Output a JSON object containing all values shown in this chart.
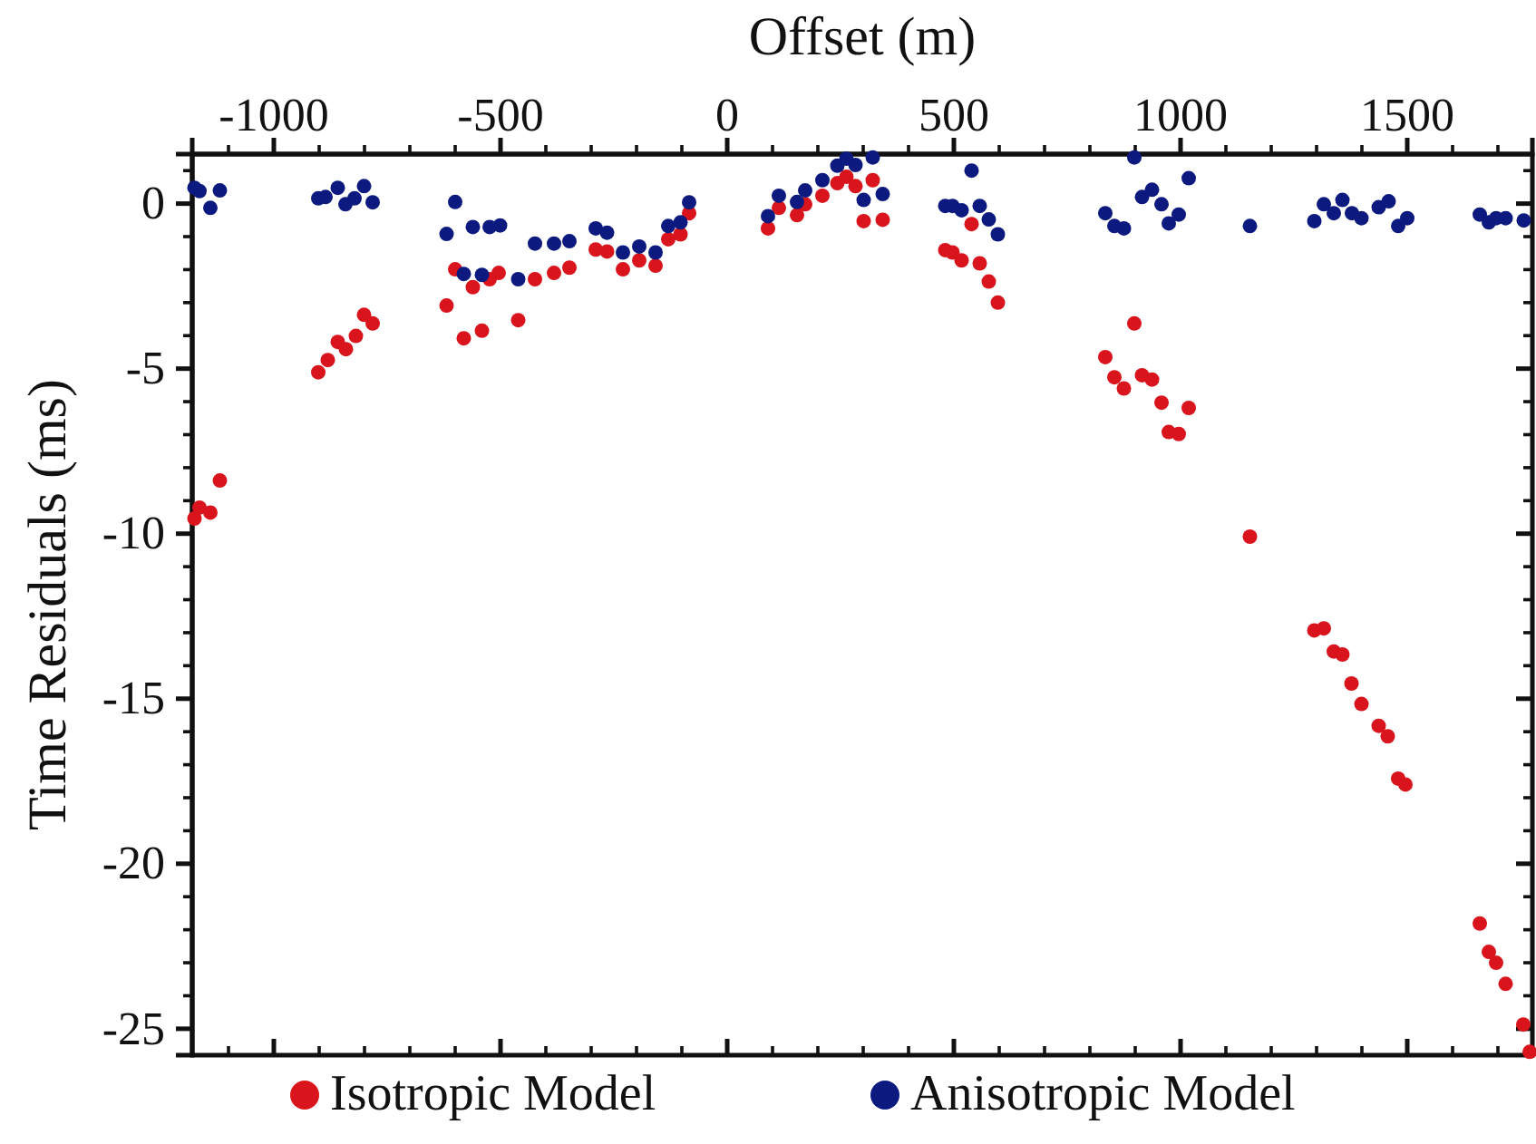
{
  "chart_data": {
    "type": "scatter",
    "xlabel": "Offset (m)",
    "ylabel": "Time Residuals (ms)",
    "xlim": [
      -1180,
      1776
    ],
    "ylim": [
      -25.8,
      1.5
    ],
    "xticks": [
      {
        "value": -1100,
        "label": null
      },
      -1000,
      {
        "value": -900,
        "label": null
      },
      {
        "value": -800,
        "label": null
      },
      {
        "value": -700,
        "label": null
      },
      {
        "value": -600,
        "label": null
      },
      -500,
      {
        "value": -400,
        "label": null
      },
      {
        "value": -300,
        "label": null
      },
      {
        "value": -200,
        "label": null
      },
      {
        "value": -100,
        "label": null
      },
      0,
      {
        "value": 100,
        "label": null
      },
      {
        "value": 200,
        "label": null
      },
      {
        "value": 300,
        "label": null
      },
      {
        "value": 400,
        "label": null
      },
      500,
      {
        "value": 600,
        "label": null
      },
      {
        "value": 700,
        "label": null
      },
      {
        "value": 800,
        "label": null
      },
      {
        "value": 900,
        "label": null
      },
      1000,
      {
        "value": 1100,
        "label": null
      },
      {
        "value": 1200,
        "label": null
      },
      {
        "value": 1300,
        "label": null
      },
      {
        "value": 1400,
        "label": null
      },
      1500,
      {
        "value": 1600,
        "label": null
      },
      {
        "value": 1700,
        "label": null
      }
    ],
    "yticks": [
      -25,
      {
        "value": -24,
        "label": null
      },
      {
        "value": -23,
        "label": null
      },
      {
        "value": -22,
        "label": null
      },
      {
        "value": -21,
        "label": null
      },
      -20,
      {
        "value": -19,
        "label": null
      },
      {
        "value": -18,
        "label": null
      },
      {
        "value": -17,
        "label": null
      },
      {
        "value": -16,
        "label": null
      },
      -15,
      {
        "value": -14,
        "label": null
      },
      {
        "value": -13,
        "label": null
      },
      {
        "value": -12,
        "label": null
      },
      {
        "value": -11,
        "label": null
      },
      -10,
      {
        "value": -9,
        "label": null
      },
      {
        "value": -8,
        "label": null
      },
      {
        "value": -7,
        "label": null
      },
      {
        "value": -6,
        "label": null
      },
      -5,
      {
        "value": -4,
        "label": null
      },
      {
        "value": -3,
        "label": null
      },
      {
        "value": -2,
        "label": null
      },
      {
        "value": -1,
        "label": null
      },
      0,
      {
        "value": 1,
        "label": null
      }
    ],
    "grid": false,
    "legend": "bottom",
    "marker": "circle",
    "series": [
      {
        "name": "Isotropic Model",
        "color": "#d9141c",
        "x": [
          -1175,
          -1164,
          -1140,
          -1119,
          -902,
          -881,
          -859,
          -841,
          -819,
          -801,
          -782,
          -619,
          -600,
          -581,
          -561,
          -541,
          -524,
          -504,
          -461,
          -424,
          -382,
          -348,
          -290,
          -265,
          -230,
          -194,
          -158,
          -130,
          -103,
          -84,
          90,
          114,
          154,
          172,
          210,
          243,
          263,
          283,
          301,
          321,
          343,
          481,
          497,
          517,
          539,
          557,
          577,
          597,
          834,
          854,
          875,
          898,
          915,
          937,
          958,
          974,
          996,
          1018,
          1153,
          1295,
          1316,
          1338,
          1357,
          1377,
          1399,
          1437,
          1457,
          1480,
          1496,
          1660,
          1680,
          1696,
          1717,
          1756,
          1770
        ],
        "values": [
          -9.54,
          -9.21,
          -9.36,
          -8.39,
          -5.11,
          -4.74,
          -4.19,
          -4.41,
          -4.01,
          -3.37,
          -3.63,
          -3.09,
          -1.99,
          -4.08,
          -2.53,
          -3.85,
          -2.29,
          -2.1,
          -3.53,
          -2.29,
          -2.1,
          -1.94,
          -1.39,
          -1.45,
          -1.99,
          -1.72,
          -1.88,
          -1.08,
          -0.93,
          -0.29,
          -0.75,
          -0.13,
          -0.35,
          -0.02,
          0.24,
          0.62,
          0.81,
          0.53,
          -0.53,
          0.71,
          -0.49,
          -1.41,
          -1.48,
          -1.72,
          -0.62,
          -1.81,
          -2.36,
          -3.0,
          -4.65,
          -5.26,
          -5.6,
          -3.63,
          -5.2,
          -5.33,
          -6.03,
          -6.92,
          -6.98,
          -6.19,
          -10.09,
          -12.93,
          -12.87,
          -13.57,
          -13.66,
          -14.54,
          -15.16,
          -15.82,
          -16.14,
          -17.42,
          -17.6,
          -21.81,
          -22.67,
          -23.0,
          -23.64,
          -24.87,
          -25.7
        ]
      },
      {
        "name": "Anisotropic Model",
        "color": "#0c1a80",
        "x": [
          -1175,
          -1164,
          -1140,
          -1119,
          -902,
          -886,
          -859,
          -842,
          -822,
          -801,
          -782,
          -619,
          -600,
          -581,
          -561,
          -541,
          -524,
          -501,
          -461,
          -424,
          -382,
          -348,
          -290,
          -265,
          -230,
          -194,
          -158,
          -130,
          -103,
          -84,
          90,
          114,
          154,
          172,
          210,
          243,
          263,
          283,
          301,
          321,
          343,
          481,
          497,
          517,
          539,
          557,
          577,
          597,
          834,
          854,
          875,
          898,
          915,
          937,
          958,
          974,
          996,
          1018,
          1153,
          1295,
          1316,
          1338,
          1357,
          1378,
          1399,
          1437,
          1459,
          1480,
          1500,
          1660,
          1680,
          1696,
          1717,
          1757
        ],
        "values": [
          0.48,
          0.38,
          -0.13,
          0.4,
          0.16,
          0.2,
          0.48,
          -0.02,
          0.16,
          0.53,
          0.04,
          -0.92,
          0.05,
          -2.13,
          -0.71,
          -2.16,
          -0.71,
          -0.66,
          -2.29,
          -1.21,
          -1.21,
          -1.14,
          -0.75,
          -0.88,
          -1.48,
          -1.3,
          -1.48,
          -0.68,
          -0.57,
          0.04,
          -0.38,
          0.24,
          0.05,
          0.4,
          0.71,
          1.15,
          1.36,
          1.17,
          0.11,
          1.4,
          0.29,
          -0.07,
          -0.07,
          -0.2,
          1.0,
          -0.07,
          -0.48,
          -0.93,
          -0.29,
          -0.68,
          -0.75,
          1.4,
          0.2,
          0.42,
          -0.02,
          -0.6,
          -0.33,
          0.77,
          -0.68,
          -0.53,
          -0.02,
          -0.29,
          0.11,
          -0.29,
          -0.44,
          -0.11,
          0.07,
          -0.68,
          -0.44,
          -0.33,
          -0.57,
          -0.44,
          -0.44,
          -0.51
        ]
      }
    ]
  }
}
